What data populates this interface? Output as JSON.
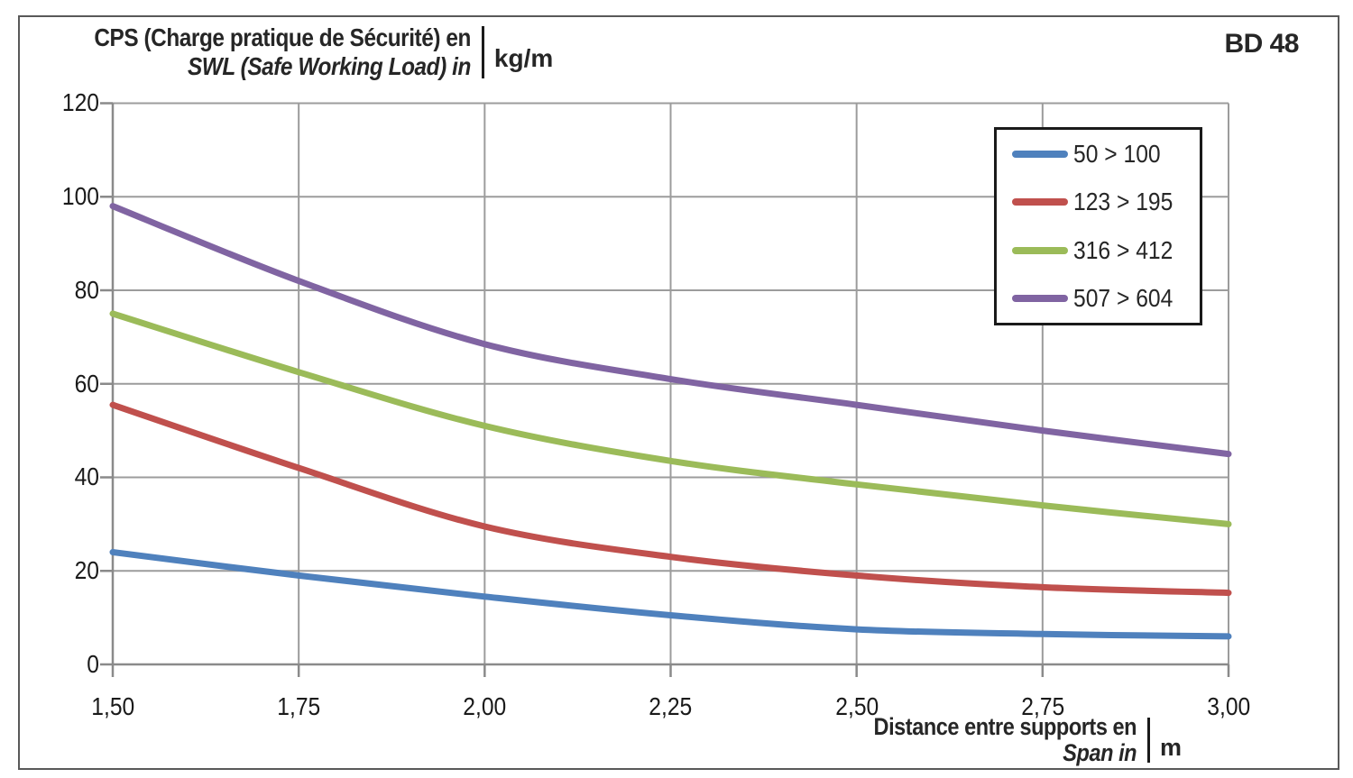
{
  "ref_label": "BD 48",
  "chart_data": {
    "type": "line",
    "title": {
      "line1_fr": "CPS (Charge pratique de Sécurité) en",
      "line2_en": "SWL (Safe Working Load) in",
      "unit": "kg/m"
    },
    "xlabel": {
      "line1_fr": "Distance entre supports en",
      "line2_en": "Span in",
      "unit": "m"
    },
    "x": [
      1.5,
      1.75,
      2.0,
      2.25,
      2.5,
      2.75,
      3.0
    ],
    "x_tick_labels": [
      "1,50",
      "1,75",
      "2,00",
      "2,25",
      "2,50",
      "2,75",
      "3,00"
    ],
    "y_ticks": [
      0,
      20,
      40,
      60,
      80,
      100,
      120
    ],
    "y_tick_labels": [
      "0",
      "20",
      "40",
      "60",
      "80",
      "100",
      "120"
    ],
    "xlim": [
      1.5,
      3.0
    ],
    "ylim": [
      0,
      120
    ],
    "grid": true,
    "legend_position": "top-right",
    "series": [
      {
        "name": "50 > 100",
        "color": "#4F81BD",
        "values": [
          24,
          19,
          14.5,
          10.5,
          7.5,
          6.5,
          6
        ]
      },
      {
        "name": "123 > 195",
        "color": "#C0504D",
        "values": [
          55.5,
          42,
          29.5,
          23,
          19,
          16.5,
          15.3
        ]
      },
      {
        "name": "316 > 412",
        "color": "#9BBB59",
        "values": [
          75,
          62.5,
          51,
          43.5,
          38.5,
          34,
          30
        ]
      },
      {
        "name": "507 > 604",
        "color": "#8064A2",
        "values": [
          98,
          82,
          68.5,
          61,
          55.5,
          50,
          45
        ]
      }
    ],
    "colors": {
      "grid": "#9C9C9C",
      "axis": "#8A8A8A",
      "text": "#262626",
      "frame_border": "#595959"
    }
  }
}
